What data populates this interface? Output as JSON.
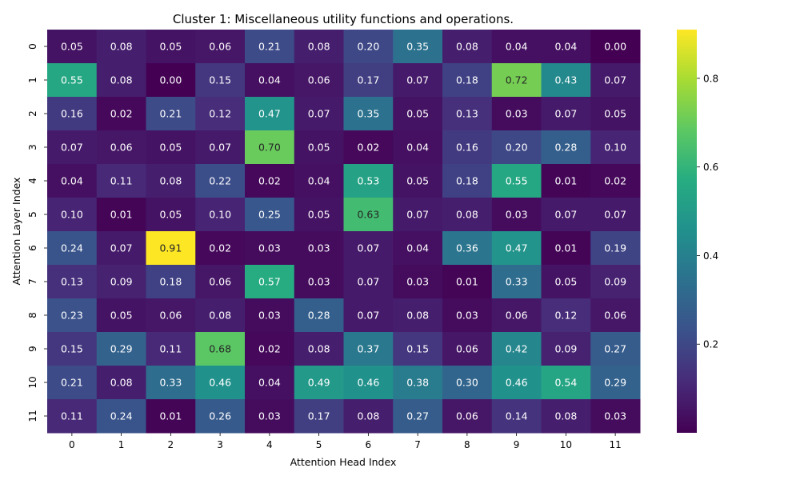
{
  "chart_data": {
    "type": "heatmap",
    "title": "Cluster 1: Miscellaneous utility functions and operations.",
    "xlabel": "Attention Head Index",
    "ylabel": "Attention Layer Index",
    "x_categories": [
      "0",
      "1",
      "2",
      "3",
      "4",
      "5",
      "6",
      "7",
      "8",
      "9",
      "10",
      "11"
    ],
    "y_categories": [
      "0",
      "1",
      "2",
      "3",
      "4",
      "5",
      "6",
      "7",
      "8",
      "9",
      "10",
      "11"
    ],
    "values": [
      [
        0.05,
        0.08,
        0.05,
        0.06,
        0.21,
        0.08,
        0.2,
        0.35,
        0.08,
        0.04,
        0.04,
        0.0
      ],
      [
        0.55,
        0.08,
        0.0,
        0.15,
        0.04,
        0.06,
        0.17,
        0.07,
        0.18,
        0.72,
        0.43,
        0.07
      ],
      [
        0.16,
        0.02,
        0.21,
        0.12,
        0.47,
        0.07,
        0.35,
        0.05,
        0.13,
        0.03,
        0.07,
        0.05
      ],
      [
        0.07,
        0.06,
        0.05,
        0.07,
        0.7,
        0.05,
        0.02,
        0.04,
        0.16,
        0.2,
        0.28,
        0.1
      ],
      [
        0.04,
        0.11,
        0.08,
        0.22,
        0.02,
        0.04,
        0.53,
        0.05,
        0.18,
        0.55,
        0.01,
        0.02
      ],
      [
        0.1,
        0.01,
        0.05,
        0.1,
        0.25,
        0.05,
        0.63,
        0.07,
        0.08,
        0.03,
        0.07,
        0.07
      ],
      [
        0.24,
        0.07,
        0.91,
        0.02,
        0.03,
        0.03,
        0.07,
        0.04,
        0.36,
        0.47,
        0.01,
        0.19
      ],
      [
        0.13,
        0.09,
        0.18,
        0.06,
        0.57,
        0.03,
        0.07,
        0.03,
        0.01,
        0.33,
        0.05,
        0.09
      ],
      [
        0.23,
        0.05,
        0.06,
        0.08,
        0.03,
        0.28,
        0.07,
        0.08,
        0.03,
        0.06,
        0.12,
        0.06
      ],
      [
        0.15,
        0.29,
        0.11,
        0.68,
        0.02,
        0.08,
        0.37,
        0.15,
        0.06,
        0.42,
        0.09,
        0.27
      ],
      [
        0.21,
        0.08,
        0.33,
        0.46,
        0.04,
        0.49,
        0.46,
        0.38,
        0.3,
        0.46,
        0.54,
        0.29
      ],
      [
        0.11,
        0.24,
        0.01,
        0.26,
        0.03,
        0.17,
        0.08,
        0.27,
        0.06,
        0.14,
        0.08,
        0.03
      ]
    ],
    "colormap": "viridis",
    "vmin": 0.0,
    "vmax": 0.91,
    "colorbar_ticks": [
      "0.2",
      "0.4",
      "0.6",
      "0.8"
    ],
    "grid": false
  }
}
